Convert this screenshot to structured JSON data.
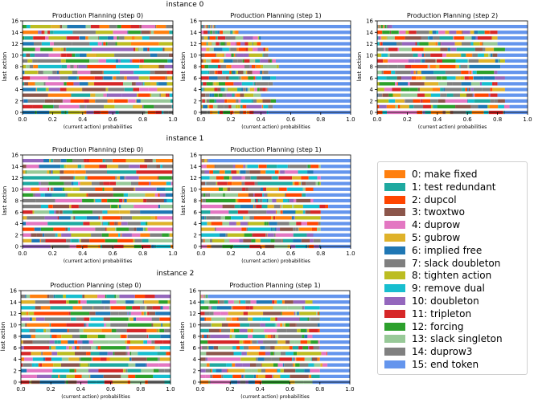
{
  "instances": [
    {
      "label": "instance 0"
    },
    {
      "label": "instance 1"
    },
    {
      "label": "instance 2"
    }
  ],
  "legend": {
    "entries": [
      {
        "label": "0: make fixed",
        "color": "#ff7f0e"
      },
      {
        "label": "1: test redundant",
        "color": "#1fa9a0"
      },
      {
        "label": "2: dupcol",
        "color": "#ff4500"
      },
      {
        "label": "3: twoxtwo",
        "color": "#8c564b"
      },
      {
        "label": "4: duprow",
        "color": "#e377c2"
      },
      {
        "label": "5: gubrow",
        "color": "#dfb22a"
      },
      {
        "label": "6: implied free",
        "color": "#1f77b4"
      },
      {
        "label": "7: slack doubleton",
        "color": "#7f7f7f"
      },
      {
        "label": "8: tighten action",
        "color": "#bcbd22"
      },
      {
        "label": "9: remove dual",
        "color": "#17becf"
      },
      {
        "label": "10: doubleton",
        "color": "#9467bd"
      },
      {
        "label": "11: tripleton",
        "color": "#d62728"
      },
      {
        "label": "12: forcing",
        "color": "#2ca02c"
      },
      {
        "label": "13: slack singleton",
        "color": "#98c998"
      },
      {
        "label": "14: duprow3",
        "color": "#808080"
      },
      {
        "label": "15: end token",
        "color": "#6495ed"
      }
    ]
  },
  "chart_data": [
    {
      "type": "bar",
      "orientation": "horizontal-stacked",
      "instance": "instance 0",
      "title": "Production Planning (step 0)",
      "xlabel": "(current action) probabilities",
      "ylabel": "last action",
      "xlim": [
        0,
        1
      ],
      "ylim": [
        0,
        16
      ],
      "xticks": [
        "0.0",
        "0.2",
        "0.4",
        "0.6",
        "0.8",
        "1.0"
      ],
      "yticks": [
        "0",
        "2",
        "4",
        "6",
        "8",
        "10",
        "12",
        "14",
        "16"
      ],
      "categories": [
        "0",
        "1",
        "2",
        "3",
        "4",
        "5",
        "6",
        "7",
        "8",
        "9",
        "10",
        "11",
        "12",
        "13",
        "14",
        "15"
      ],
      "end_token_fraction": [
        0.0,
        0.0,
        0.0,
        0.0,
        0.0,
        0.0,
        0.0,
        0.0,
        0.0,
        0.0,
        0.0,
        0.0,
        0.0,
        0.0,
        0.0,
        0.0
      ]
    },
    {
      "type": "bar",
      "orientation": "horizontal-stacked",
      "instance": "instance 0",
      "title": "Production Planning (step 1)",
      "xlabel": "(current action) probabilities",
      "ylabel": "last action",
      "xlim": [
        0,
        1
      ],
      "ylim": [
        0,
        16
      ],
      "xticks": [
        "0.0",
        "0.2",
        "0.4",
        "0.6",
        "0.8",
        "1.0"
      ],
      "yticks": [
        "0",
        "2",
        "4",
        "6",
        "8",
        "10",
        "12",
        "14",
        "16"
      ],
      "categories": [
        "0",
        "1",
        "2",
        "3",
        "4",
        "5",
        "6",
        "7",
        "8",
        "9",
        "10",
        "11",
        "12",
        "13",
        "14",
        "15"
      ],
      "end_token_fraction": [
        0.55,
        0.52,
        0.5,
        0.6,
        0.55,
        0.52,
        0.5,
        0.55,
        0.48,
        0.5,
        0.55,
        0.55,
        0.6,
        0.6,
        0.75,
        0.9
      ]
    },
    {
      "type": "bar",
      "orientation": "horizontal-stacked",
      "instance": "instance 0",
      "title": "Production Planning (step 2)",
      "xlabel": "(current action) probabilities",
      "ylabel": "last action",
      "xlim": [
        0,
        1
      ],
      "ylim": [
        0,
        16
      ],
      "xticks": [
        "0.0",
        "0.2",
        "0.4",
        "0.6",
        "0.8",
        "1.0"
      ],
      "yticks": [
        "0",
        "2",
        "4",
        "6",
        "8",
        "10",
        "12",
        "14",
        "16"
      ],
      "categories": [
        "0",
        "1",
        "2",
        "3",
        "4",
        "5",
        "6",
        "7",
        "8",
        "9",
        "10",
        "11",
        "12",
        "13",
        "14",
        "15"
      ],
      "end_token_fraction": [
        0.15,
        0.12,
        0.15,
        0.2,
        0.15,
        0.2,
        0.15,
        0.2,
        0.18,
        0.15,
        0.2,
        0.15,
        0.2,
        0.2,
        0.2,
        0.9
      ]
    },
    {
      "type": "bar",
      "orientation": "horizontal-stacked",
      "instance": "instance 1",
      "title": "Production Planning (step 0)",
      "xlabel": "(current action) probabilities",
      "ylabel": "last action",
      "xlim": [
        0,
        1
      ],
      "ylim": [
        0,
        16
      ],
      "xticks": [
        "0.0",
        "0.2",
        "0.4",
        "0.6",
        "0.8",
        "1.0"
      ],
      "yticks": [
        "0",
        "2",
        "4",
        "6",
        "8",
        "10",
        "12",
        "14",
        "16"
      ],
      "categories": [
        "0",
        "1",
        "2",
        "3",
        "4",
        "5",
        "6",
        "7",
        "8",
        "9",
        "10",
        "11",
        "12",
        "13",
        "14",
        "15"
      ],
      "end_token_fraction": [
        0.0,
        0.0,
        0.0,
        0.0,
        0.0,
        0.0,
        0.0,
        0.0,
        0.0,
        0.0,
        0.0,
        0.0,
        0.0,
        0.0,
        0.0,
        0.0
      ]
    },
    {
      "type": "bar",
      "orientation": "horizontal-stacked",
      "instance": "instance 1",
      "title": "Production Planning (step 1)",
      "xlabel": "(current action) probabilities",
      "ylabel": "last action",
      "xlim": [
        0,
        1
      ],
      "ylim": [
        0,
        16
      ],
      "xticks": [
        "0.0",
        "0.2",
        "0.4",
        "0.6",
        "0.8",
        "1.0"
      ],
      "yticks": [
        "0",
        "2",
        "4",
        "6",
        "8",
        "10",
        "12",
        "14",
        "16"
      ],
      "categories": [
        "0",
        "1",
        "2",
        "3",
        "4",
        "5",
        "6",
        "7",
        "8",
        "9",
        "10",
        "11",
        "12",
        "13",
        "14",
        "15"
      ],
      "end_token_fraction": [
        0.2,
        0.2,
        0.25,
        0.2,
        0.2,
        0.2,
        0.2,
        0.15,
        0.25,
        0.3,
        0.25,
        0.2,
        0.2,
        0.25,
        0.2,
        0.95
      ]
    },
    {
      "type": "bar",
      "orientation": "horizontal-stacked",
      "instance": "instance 2",
      "title": "Production Planning (step 0)",
      "xlabel": "(current action) probabilities",
      "ylabel": "last action",
      "xlim": [
        0,
        1
      ],
      "ylim": [
        0,
        16
      ],
      "xticks": [
        "0.0",
        "0.2",
        "0.4",
        "0.6",
        "0.8",
        "1.0"
      ],
      "yticks": [
        "0",
        "2",
        "4",
        "6",
        "8",
        "10",
        "12",
        "14",
        "16"
      ],
      "categories": [
        "0",
        "1",
        "2",
        "3",
        "4",
        "5",
        "6",
        "7",
        "8",
        "9",
        "10",
        "11",
        "12",
        "13",
        "14",
        "15"
      ],
      "end_token_fraction": [
        0.0,
        0.0,
        0.0,
        0.0,
        0.0,
        0.0,
        0.0,
        0.0,
        0.0,
        0.0,
        0.0,
        0.0,
        0.0,
        0.0,
        0.0,
        0.0
      ]
    },
    {
      "type": "bar",
      "orientation": "horizontal-stacked",
      "instance": "instance 2",
      "title": "Production Planning (step 1)",
      "xlabel": "(current action) probabilities",
      "ylabel": "last action",
      "xlim": [
        0,
        1
      ],
      "ylim": [
        0,
        16
      ],
      "xticks": [
        "0.0",
        "0.2",
        "0.4",
        "0.6",
        "0.8",
        "1.0"
      ],
      "yticks": [
        "0",
        "2",
        "4",
        "6",
        "8",
        "10",
        "12",
        "14",
        "16"
      ],
      "categories": [
        "0",
        "1",
        "2",
        "3",
        "4",
        "5",
        "6",
        "7",
        "8",
        "9",
        "10",
        "11",
        "12",
        "13",
        "14",
        "15"
      ],
      "end_token_fraction": [
        0.25,
        0.2,
        0.2,
        0.15,
        0.2,
        0.15,
        0.2,
        0.2,
        0.25,
        0.2,
        0.2,
        0.2,
        0.2,
        0.2,
        0.25,
        0.95
      ]
    }
  ]
}
